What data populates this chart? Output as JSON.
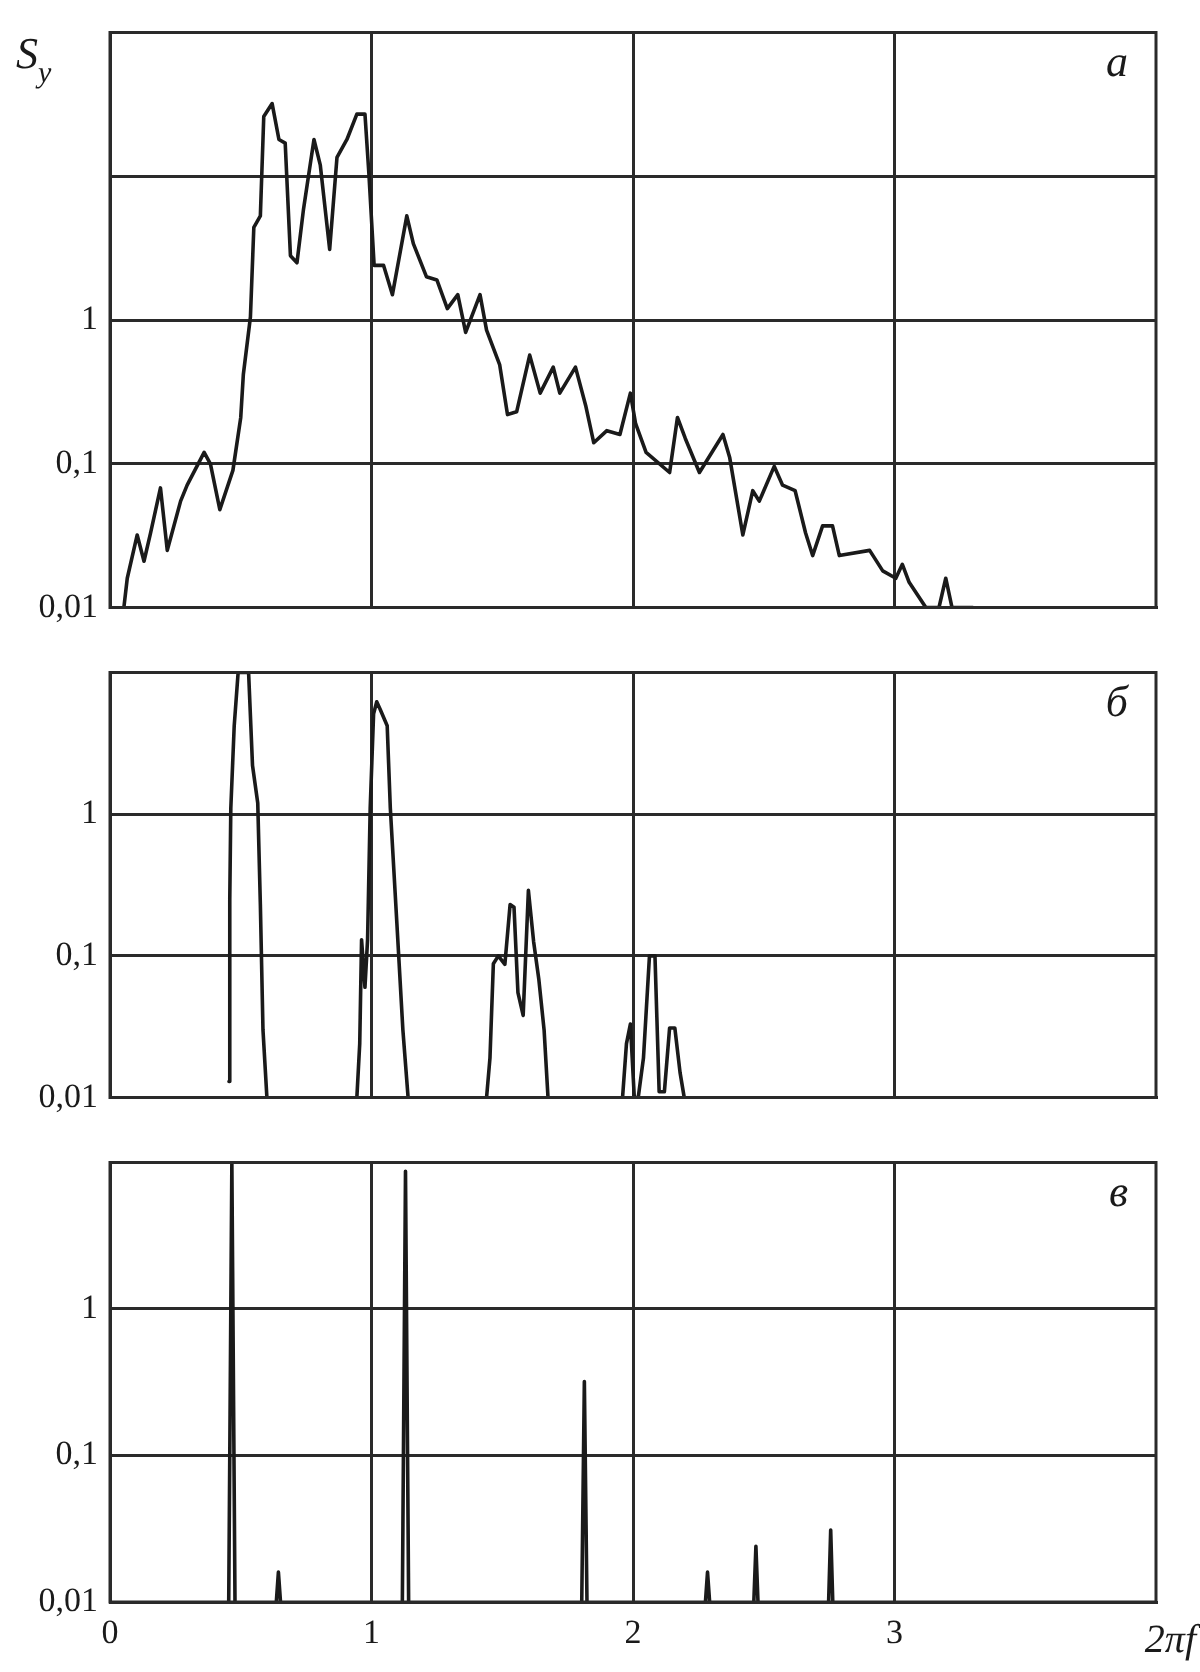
{
  "chart_data": [
    {
      "type": "line",
      "ylabel": "S$_{y}$",
      "annotations": [
        "а"
      ],
      "color": "#1a1a1a",
      "log": "y",
      "grid": true,
      "tick_labels": "y",
      "xlim": [
        0,
        4
      ],
      "xticks": [
        0,
        1,
        2,
        3
      ],
      "ylim": [
        0.01,
        100
      ],
      "yticks": [
        {
          "value": 0.01,
          "label": "0,01"
        },
        {
          "value": 0.1,
          "label": "0,1"
        },
        {
          "value": 1,
          "label": "1"
        },
        {
          "value": 10,
          "label": null
        }
      ],
      "x": [
        0.053,
        0.066,
        0.104,
        0.13,
        0.155,
        0.193,
        0.219,
        0.27,
        0.295,
        0.36,
        0.384,
        0.42,
        0.47,
        0.5,
        0.51,
        0.537,
        0.55,
        0.575,
        0.588,
        0.62,
        0.646,
        0.67,
        0.69,
        0.715,
        0.74,
        0.78,
        0.804,
        0.84,
        0.868,
        0.906,
        0.944,
        0.975,
        0.99,
        1.01,
        1.046,
        1.08,
        1.135,
        1.16,
        1.21,
        1.25,
        1.29,
        1.33,
        1.36,
        1.415,
        1.44,
        1.49,
        1.52,
        1.555,
        1.605,
        1.645,
        1.695,
        1.72,
        1.78,
        1.82,
        1.85,
        1.9,
        1.95,
        1.99,
        2.01,
        2.05,
        2.14,
        2.17,
        2.2,
        2.254,
        2.344,
        2.37,
        2.42,
        2.458,
        2.483,
        2.54,
        2.572,
        2.62,
        2.66,
        2.687,
        2.725,
        2.763,
        2.789,
        2.905,
        2.955,
        3.005,
        3.03,
        3.056,
        3.12,
        3.17,
        3.196,
        3.22,
        3.3
      ],
      "values": [
        0.01,
        0.016,
        0.032,
        0.021,
        0.033,
        0.068,
        0.025,
        0.055,
        0.071,
        0.12,
        0.1,
        0.048,
        0.09,
        0.21,
        0.42,
        1.05,
        4.4,
        5.3,
        26,
        32,
        18,
        17,
        2.8,
        2.5,
        5.9,
        18,
        12,
        3.1,
        13.5,
        18,
        27,
        27,
        10.4,
        2.4,
        2.4,
        1.5,
        5.3,
        3.4,
        2,
        1.9,
        1.2,
        1.5,
        0.82,
        1.5,
        0.85,
        0.49,
        0.22,
        0.23,
        0.57,
        0.31,
        0.47,
        0.31,
        0.47,
        0.25,
        0.14,
        0.17,
        0.16,
        0.31,
        0.19,
        0.12,
        0.087,
        0.21,
        0.15,
        0.087,
        0.16,
        0.11,
        0.032,
        0.065,
        0.055,
        0.096,
        0.071,
        0.065,
        0.033,
        0.023,
        0.037,
        0.037,
        0.023,
        0.025,
        0.018,
        0.016,
        0.02,
        0.015,
        0.01,
        0.01,
        0.016,
        0.01,
        0.01
      ]
    },
    {
      "type": "line",
      "annotations": [
        "б"
      ],
      "color": "#1a1a1a",
      "log": "y",
      "grid": true,
      "tick_labels": "y",
      "xlim": [
        0,
        4
      ],
      "xticks": [
        0,
        1,
        2,
        3
      ],
      "ylim": [
        0.01,
        10
      ],
      "yticks": [
        {
          "value": 0.01,
          "label": "0,01"
        },
        {
          "value": 0.1,
          "label": "0,1"
        },
        {
          "value": 1,
          "label": "1"
        },
        {
          "value": 10,
          "label": null
        }
      ],
      "x": [
        0.455,
        0.458,
        0.462,
        0.475,
        0.49,
        0.53,
        0.545,
        0.565,
        0.575,
        0.585,
        0.6,
        0.77,
        0.944,
        0.955,
        0.962,
        0.975,
        0.985,
        0.995,
        1.008,
        1.02,
        1.033,
        1.06,
        1.072,
        1.097,
        1.12,
        1.14,
        1.3,
        1.44,
        1.453,
        1.466,
        1.485,
        1.51,
        1.53,
        1.545,
        1.56,
        1.58,
        1.6,
        1.62,
        1.64,
        1.66,
        1.675,
        1.8,
        1.96,
        1.975,
        1.99,
        2.005,
        2.02,
        2.04,
        2.063,
        2.084,
        2.1,
        2.12,
        2.14,
        2.16,
        2.18,
        2.196
      ],
      "values": [
        0.013,
        0.25,
        1.1,
        4.2,
        10,
        10,
        2.2,
        1.2,
        0.23,
        0.03,
        0.01,
        null,
        0.01,
        0.024,
        0.13,
        0.06,
        0.13,
        1.1,
        5.1,
        6.2,
        5.5,
        4.2,
        1.1,
        0.17,
        0.03,
        0.01,
        null,
        0.01,
        0.019,
        0.088,
        0.1,
        0.087,
        0.23,
        0.22,
        0.055,
        0.038,
        0.29,
        0.126,
        0.068,
        0.03,
        0.01,
        null,
        0.01,
        0.024,
        0.033,
        0.01,
        0.01,
        0.019,
        0.1,
        0.1,
        0.011,
        0.011,
        0.031,
        0.031,
        0.015,
        0.01
      ]
    },
    {
      "type": "line",
      "xlabel": "2πf",
      "annotations": [
        "в"
      ],
      "color": "#1a1a1a",
      "log": "y",
      "grid": true,
      "xlim": [
        0,
        4
      ],
      "xticks": [
        0,
        1,
        2,
        3
      ],
      "ylim": [
        0.01,
        10
      ],
      "yticks": [
        {
          "value": 0.01,
          "label": "0,01"
        },
        {
          "value": 0.1,
          "label": "0,1"
        },
        {
          "value": 1,
          "label": "1"
        },
        {
          "value": 10,
          "label": null
        }
      ],
      "x": [
        0.454,
        0.466,
        0.478,
        0.55,
        0.636,
        0.644,
        0.652,
        0.9,
        1.118,
        1.13,
        1.142,
        1.5,
        1.804,
        1.814,
        1.824,
        2.1,
        2.277,
        2.285,
        2.293,
        2.4,
        2.462,
        2.47,
        2.478,
        2.6,
        2.748,
        2.756,
        2.764
      ],
      "values": [
        0.01,
        10,
        0.01,
        null,
        0.01,
        0.016,
        0.01,
        null,
        0.01,
        8.7,
        0.01,
        null,
        0.01,
        0.32,
        0.01,
        null,
        0.01,
        0.016,
        0.01,
        null,
        0.01,
        0.024,
        0.01,
        null,
        0.01,
        0.031,
        0.01
      ]
    }
  ]
}
